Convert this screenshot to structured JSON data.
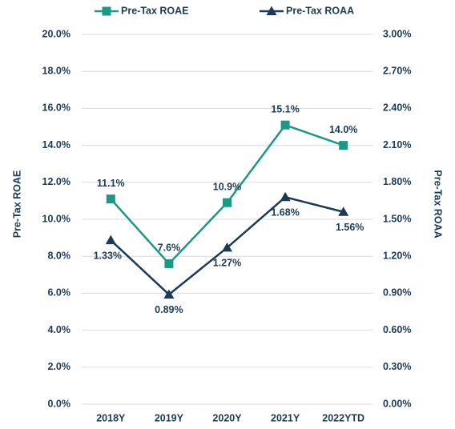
{
  "chart_data": {
    "type": "line",
    "categories": [
      "2018Y",
      "2019Y",
      "2020Y",
      "2021Y",
      "2022YTD"
    ],
    "series": [
      {
        "name": "Pre-Tax ROAE",
        "color": "#1a9985",
        "marker": "square",
        "values": [
          11.1,
          7.6,
          10.9,
          15.1,
          14.0
        ],
        "value_labels": [
          "11.1%",
          "7.6%",
          "10.9%",
          "15.1%",
          "14.0%"
        ]
      },
      {
        "name": "Pre-Tax ROAA",
        "color": "#1b3a57",
        "marker": "triangle",
        "axis": "y2",
        "values": [
          1.33,
          0.89,
          1.27,
          1.68,
          1.56
        ],
        "value_labels": [
          "1.33%",
          "0.89%",
          "1.27%",
          "1.68%",
          "1.56%"
        ]
      }
    ],
    "ylabel": "Pre-Tax ROAE",
    "y2label": "Pre-Tax ROAA",
    "ylim": [
      0,
      20
    ],
    "yticks": [
      {
        "value": 0,
        "label": "0.0%"
      },
      {
        "value": 2,
        "label": "2.0%"
      },
      {
        "value": 4,
        "label": "4.0%"
      },
      {
        "value": 6,
        "label": "6.0%"
      },
      {
        "value": 8,
        "label": "8.0%"
      },
      {
        "value": 10,
        "label": "10.0%"
      },
      {
        "value": 12,
        "label": "12.0%"
      },
      {
        "value": 14,
        "label": "14.0%"
      },
      {
        "value": 16,
        "label": "16.0%"
      },
      {
        "value": 18,
        "label": "18.0%"
      },
      {
        "value": 20,
        "label": "20.0%"
      }
    ],
    "y2lim": [
      0,
      3
    ],
    "y2ticks": [
      {
        "value": 0,
        "label": "0.00%"
      },
      {
        "value": 0.3,
        "label": "0.30%"
      },
      {
        "value": 0.6,
        "label": "0.60%"
      },
      {
        "value": 0.9,
        "label": "0.90%"
      },
      {
        "value": 1.2,
        "label": "1.20%"
      },
      {
        "value": 1.5,
        "label": "1.50%"
      },
      {
        "value": 1.8,
        "label": "1.80%"
      },
      {
        "value": 2.1,
        "label": "2.10%"
      },
      {
        "value": 2.4,
        "label": "2.40%"
      },
      {
        "value": 2.7,
        "label": "2.70%"
      },
      {
        "value": 3,
        "label": "3.00%"
      }
    ],
    "grid": true,
    "legend": "top"
  }
}
